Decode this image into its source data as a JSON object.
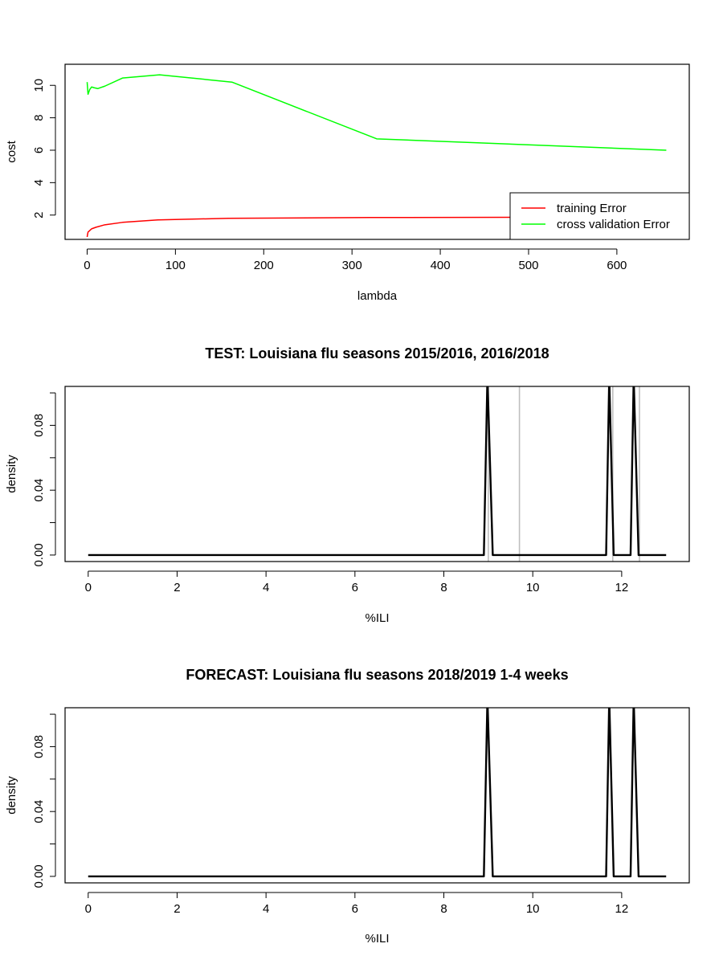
{
  "chart_data": [
    {
      "type": "line",
      "title": "",
      "xlabel": "lambda",
      "ylabel": "cost",
      "xlim": [
        -25,
        682
      ],
      "ylim": [
        0.5,
        11.3
      ],
      "x_ticks": [
        0,
        100,
        200,
        300,
        400,
        500,
        600
      ],
      "y_ticks": [
        2,
        4,
        6,
        8,
        10
      ],
      "legend_position": "bottom-right",
      "series": [
        {
          "name": "training Error",
          "color": "#ff0000",
          "x": [
            0,
            0.3,
            1,
            3,
            5,
            10,
            20,
            40,
            80,
            160,
            320,
            480,
            640,
            656
          ],
          "y": [
            0.65,
            0.75,
            0.95,
            1.05,
            1.15,
            1.25,
            1.4,
            1.55,
            1.7,
            1.8,
            1.85,
            1.86,
            1.87,
            1.87
          ]
        },
        {
          "name": "cross validation Error",
          "color": "#00ff00",
          "x": [
            0,
            1,
            3,
            5,
            8,
            12,
            20,
            40,
            82,
            164,
            328,
            656
          ],
          "y": [
            10.2,
            9.45,
            9.75,
            9.9,
            9.85,
            9.8,
            9.95,
            10.45,
            10.65,
            10.2,
            6.7,
            6.0
          ]
        }
      ]
    },
    {
      "type": "line",
      "title": "TEST: Louisiana  flu seasons 2015/2016, 2016/2018",
      "xlabel": "%ILI",
      "ylabel": "density",
      "xlim": [
        -0.52,
        13.52
      ],
      "ylim": [
        -0.004,
        0.104
      ],
      "x_ticks": [
        0,
        2,
        4,
        6,
        8,
        10,
        12
      ],
      "y_ticks": [
        0.0,
        0.02,
        0.04,
        0.06,
        0.08,
        0.1
      ],
      "y_tick_labels": [
        "0.00",
        "",
        "0.04",
        "",
        "0.08",
        ""
      ],
      "grey_lines": [
        9.0,
        9.7,
        11.8,
        12.4
      ],
      "grey_color": "#bebebe",
      "series": [
        {
          "color": "#000000",
          "x": [
            0,
            8.9,
            8.98,
            9.1,
            11.65,
            11.72,
            11.82,
            12.2,
            12.27,
            12.38,
            13
          ],
          "y": [
            0,
            0,
            0.11,
            0,
            0,
            0.11,
            0,
            0,
            0.11,
            0,
            0
          ]
        }
      ]
    },
    {
      "type": "line",
      "title": "FORECAST: Louisiana flu seasons 2018/2019 1-4 weeks",
      "xlabel": "%ILI",
      "ylabel": "density",
      "xlim": [
        -0.52,
        13.52
      ],
      "ylim": [
        -0.004,
        0.104
      ],
      "x_ticks": [
        0,
        2,
        4,
        6,
        8,
        10,
        12
      ],
      "y_ticks": [
        0.0,
        0.02,
        0.04,
        0.06,
        0.08,
        0.1
      ],
      "y_tick_labels": [
        "0.00",
        "",
        "0.04",
        "",
        "0.08",
        ""
      ],
      "series": [
        {
          "color": "#000000",
          "x": [
            0,
            8.9,
            8.98,
            9.1,
            11.65,
            11.72,
            11.82,
            12.2,
            12.27,
            12.38,
            13
          ],
          "y": [
            0,
            0,
            0.11,
            0,
            0,
            0.11,
            0,
            0,
            0.11,
            0,
            0
          ]
        }
      ]
    }
  ]
}
